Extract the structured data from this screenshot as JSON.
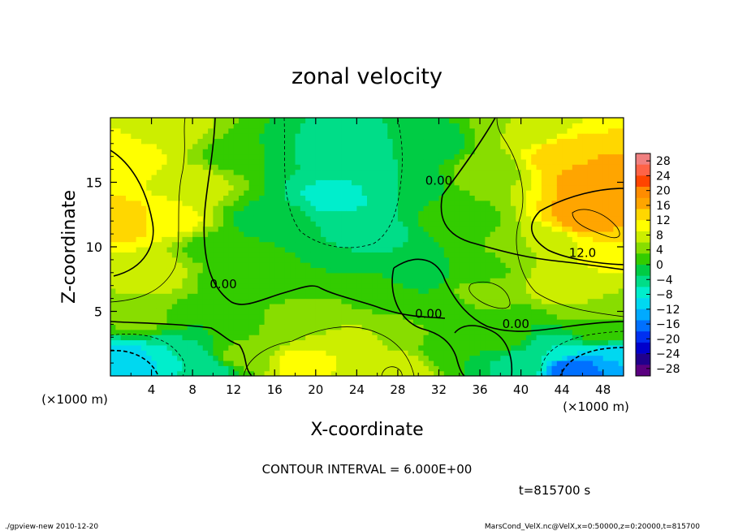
{
  "chart_data": {
    "type": "heatmap",
    "title": "zonal velocity",
    "xlabel": "X-coordinate",
    "ylabel": "Z-coordinate",
    "x_unit": "(×1000 m)",
    "y_unit": "(×1000 m)",
    "xlim": [
      0,
      50
    ],
    "ylim": [
      0,
      20
    ],
    "x_ticks": [
      4,
      8,
      12,
      16,
      20,
      24,
      28,
      32,
      36,
      40,
      44,
      48
    ],
    "y_ticks": [
      5,
      10,
      15
    ],
    "colorbar": {
      "labels": [
        28,
        24,
        20,
        16,
        12,
        8,
        4,
        0,
        -4,
        -8,
        -12,
        -16,
        -20,
        -24,
        -28
      ],
      "colors": [
        "#f08080",
        "#ff6347",
        "#ff4500",
        "#ff8c00",
        "#ffa500",
        "#ffd700",
        "#ffff00",
        "#ccee00",
        "#88dd00",
        "#33cc00",
        "#00cc44",
        "#00dd88",
        "#00eecc",
        "#00d8f0",
        "#00aaff",
        "#0070ff",
        "#0030f0",
        "#0000cc",
        "#20008c",
        "#5a0080"
      ]
    },
    "contour_labels": [
      {
        "x": 32,
        "z": 14.8,
        "text": "0.00"
      },
      {
        "x": 46,
        "z": 9.2,
        "text": "12.0"
      },
      {
        "x": 11,
        "z": 6.8,
        "text": "0.00"
      },
      {
        "x": 31,
        "z": 4.5,
        "text": "0.00"
      },
      {
        "x": 39.5,
        "z": 3.7,
        "text": "0.00"
      }
    ],
    "field_points": [
      {
        "x": 1,
        "z": 17,
        "u": 12
      },
      {
        "x": 1.5,
        "z": 12,
        "u": 14
      },
      {
        "x": 4,
        "z": 8,
        "u": 8
      },
      {
        "x": 3,
        "z": 4.5,
        "u": 4
      },
      {
        "x": 2,
        "z": 1.2,
        "u": -12
      },
      {
        "x": 6,
        "z": 1.8,
        "u": -6
      },
      {
        "x": 8,
        "z": 15,
        "u": 8
      },
      {
        "x": 10,
        "z": 10,
        "u": 2
      },
      {
        "x": 12,
        "z": 17,
        "u": 2
      },
      {
        "x": 15,
        "z": 12,
        "u": -1
      },
      {
        "x": 18,
        "z": 17,
        "u": -3
      },
      {
        "x": 22,
        "z": 14,
        "u": -7
      },
      {
        "x": 23,
        "z": 17.5,
        "u": -6
      },
      {
        "x": 25,
        "z": 11,
        "u": -5
      },
      {
        "x": 28,
        "z": 15,
        "u": -3
      },
      {
        "x": 31,
        "z": 18,
        "u": -2
      },
      {
        "x": 34,
        "z": 12,
        "u": 2
      },
      {
        "x": 37,
        "z": 16,
        "u": 5
      },
      {
        "x": 30,
        "z": 8,
        "u": -2
      },
      {
        "x": 36,
        "z": 8,
        "u": 2
      },
      {
        "x": 37,
        "z": 6.5,
        "u": 6
      },
      {
        "x": 42,
        "z": 10,
        "u": 6
      },
      {
        "x": 44,
        "z": 17,
        "u": 14
      },
      {
        "x": 47,
        "z": 15.5,
        "u": 17
      },
      {
        "x": 47,
        "z": 12.5,
        "u": 18
      },
      {
        "x": 49,
        "z": 10,
        "u": 12
      },
      {
        "x": 44,
        "z": 7,
        "u": 8
      },
      {
        "x": 47,
        "z": 5.5,
        "u": 6
      },
      {
        "x": 48,
        "z": 3.5,
        "u": 2
      },
      {
        "x": 49,
        "z": 1.5,
        "u": -12
      },
      {
        "x": 45,
        "z": 0.6,
        "u": -18
      },
      {
        "x": 43,
        "z": 2,
        "u": -6
      },
      {
        "x": 40,
        "z": 1,
        "u": -4
      },
      {
        "x": 38,
        "z": 3,
        "u": 2
      },
      {
        "x": 34,
        "z": 2,
        "u": 0
      },
      {
        "x": 32,
        "z": 5,
        "u": 0
      },
      {
        "x": 28,
        "z": 3.5,
        "u": 4
      },
      {
        "x": 23.5,
        "z": 2.5,
        "u": 9
      },
      {
        "x": 20,
        "z": 4.5,
        "u": 5
      },
      {
        "x": 18.5,
        "z": 1,
        "u": 10
      },
      {
        "x": 15,
        "z": 4,
        "u": 3
      },
      {
        "x": 13,
        "z": 1.5,
        "u": 4
      },
      {
        "x": 9,
        "z": 4,
        "u": 0
      },
      {
        "x": 9,
        "z": 0.5,
        "u": -6
      },
      {
        "x": 12,
        "z": 7.5,
        "u": 2
      },
      {
        "x": 17,
        "z": 8,
        "u": 0
      },
      {
        "x": 21,
        "z": 8.5,
        "u": 0
      },
      {
        "x": 26,
        "z": 6.5,
        "u": 2
      },
      {
        "x": 28,
        "z": 0.5,
        "u": 8
      },
      {
        "x": 26,
        "z": 10,
        "u": -3
      },
      {
        "x": 6,
        "z": 12,
        "u": 10
      },
      {
        "x": 5,
        "z": 19,
        "u": 8
      },
      {
        "x": 40,
        "z": 19,
        "u": 6
      },
      {
        "x": 39,
        "z": 4,
        "u": 0
      }
    ]
  },
  "footer": {
    "contour_interval": "CONTOUR INTERVAL = 6.000E+00",
    "time": "t=815700 s",
    "program": "./gpview-new  2010-12-20",
    "file": "MarsCond_VelX.nc@VelX,x=0:50000,z=0:20000,t=815700"
  }
}
